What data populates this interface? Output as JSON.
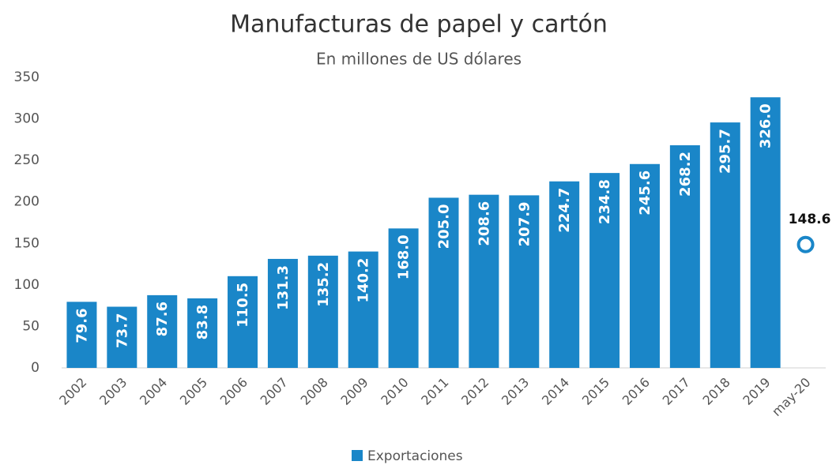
{
  "chart_data": {
    "type": "bar",
    "title": "Manufacturas de papel y cartón",
    "subtitle": "En millones de US dólares",
    "categories": [
      "2002",
      "2003",
      "2004",
      "2005",
      "2006",
      "2007",
      "2008",
      "2009",
      "2010",
      "2011",
      "2012",
      "2013",
      "2014",
      "2015",
      "2016",
      "2017",
      "2018",
      "2019",
      "may-20"
    ],
    "series": [
      {
        "name": "Exportaciones",
        "color": "#1a86c8",
        "values": [
          79.6,
          73.7,
          87.6,
          83.8,
          110.5,
          131.3,
          135.2,
          140.2,
          168.0,
          205.0,
          208.6,
          207.9,
          224.7,
          234.8,
          245.6,
          268.2,
          295.7,
          326.0,
          148.6
        ],
        "value_labels": [
          "79.6",
          "73.7",
          "87.6",
          "83.8",
          "110.5",
          "131.3",
          "135.2",
          "140.2",
          "168.0",
          "205.0",
          "208.6",
          "207.9",
          "224.7",
          "234.8",
          "245.6",
          "268.2",
          "295.7",
          "326.0",
          "148.6"
        ]
      }
    ],
    "point_last": true,
    "ylim": [
      0,
      350
    ],
    "yticks": [
      0,
      50,
      100,
      150,
      200,
      250,
      300,
      350
    ],
    "grid": false,
    "legend": "bottom"
  }
}
